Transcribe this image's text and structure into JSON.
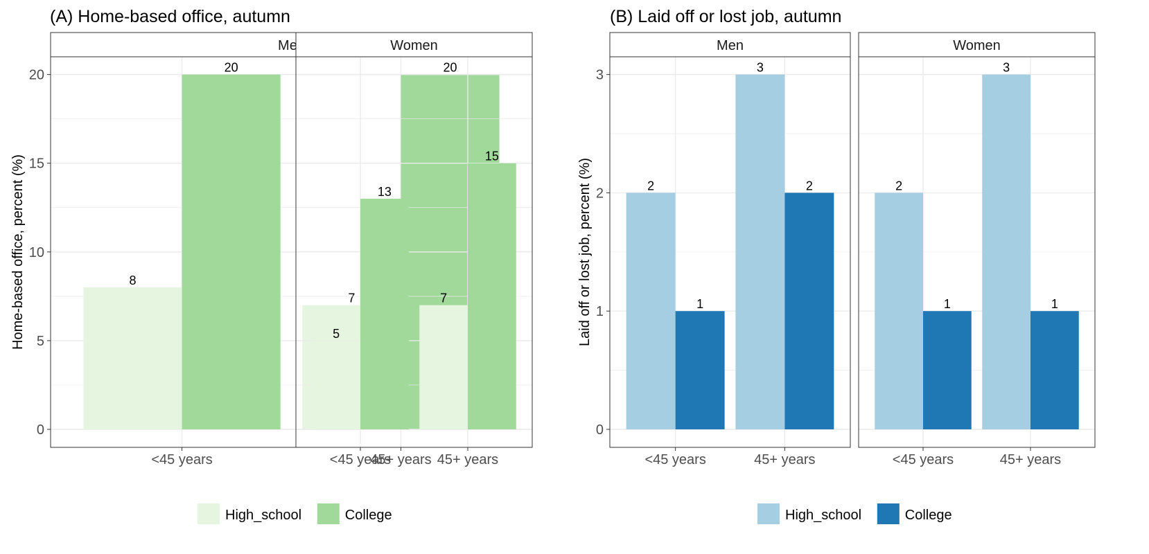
{
  "chart_data": [
    {
      "type": "bar",
      "title": "(A) Home-based office, autumn",
      "ylabel": "Home-based office, percent (%)",
      "xlabel": "",
      "ylim": [
        0,
        21
      ],
      "yticks": [
        0,
        5,
        10,
        15,
        20
      ],
      "facets": [
        "Men",
        "Women"
      ],
      "categories": [
        "<45 years",
        "45+ years"
      ],
      "grid": true,
      "legend_position": "bottom",
      "series": [
        {
          "name": "High_school",
          "color": "#e5f5e0",
          "values": {
            "Men": [
              8,
              7
            ],
            "Women": [
              5,
              7
            ]
          }
        },
        {
          "name": "College",
          "color": "#a1d99b",
          "values": {
            "Men": [
              20,
              20
            ],
            "Women": [
              13,
              15
            ]
          }
        }
      ]
    },
    {
      "type": "bar",
      "title": "(B) Laid off or lost job, autumn",
      "ylabel": "Laid off or lost job, percent (%)",
      "xlabel": "",
      "ylim": [
        0,
        3.15
      ],
      "yticks": [
        0,
        1,
        2,
        3
      ],
      "facets": [
        "Men",
        "Women"
      ],
      "categories": [
        "<45 years",
        "45+ years"
      ],
      "grid": true,
      "legend_position": "bottom",
      "series": [
        {
          "name": "High_school",
          "color": "#a6cee3",
          "values": {
            "Men": [
              2,
              3
            ],
            "Women": [
              2,
              3
            ]
          }
        },
        {
          "name": "College",
          "color": "#1f78b4",
          "values": {
            "Men": [
              1,
              2
            ],
            "Women": [
              1,
              1
            ]
          }
        }
      ]
    }
  ]
}
